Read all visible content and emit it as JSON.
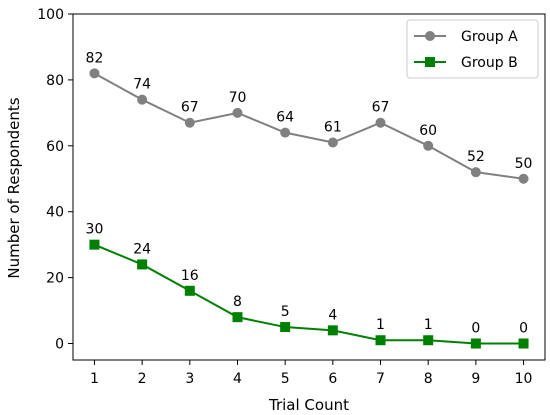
{
  "chart_data": {
    "type": "line",
    "title": "",
    "xlabel": "Trial Count",
    "ylabel": "Number of Respondents",
    "x": [
      1,
      2,
      3,
      4,
      5,
      6,
      7,
      8,
      9,
      10
    ],
    "xticks": [
      "1",
      "2",
      "3",
      "4",
      "5",
      "6",
      "7",
      "8",
      "9",
      "10"
    ],
    "ylim": [
      0,
      100
    ],
    "yticks": [
      "0",
      "20",
      "40",
      "60",
      "80",
      "100"
    ],
    "grid": false,
    "legend_position": "top-right",
    "series": [
      {
        "name": "Group A",
        "values": [
          82,
          74,
          67,
          70,
          64,
          61,
          67,
          60,
          52,
          50
        ],
        "color": "#808080",
        "marker": "circle"
      },
      {
        "name": "Group B",
        "values": [
          30,
          24,
          16,
          8,
          5,
          4,
          1,
          1,
          0,
          0
        ],
        "color": "#008000",
        "marker": "square"
      }
    ]
  }
}
